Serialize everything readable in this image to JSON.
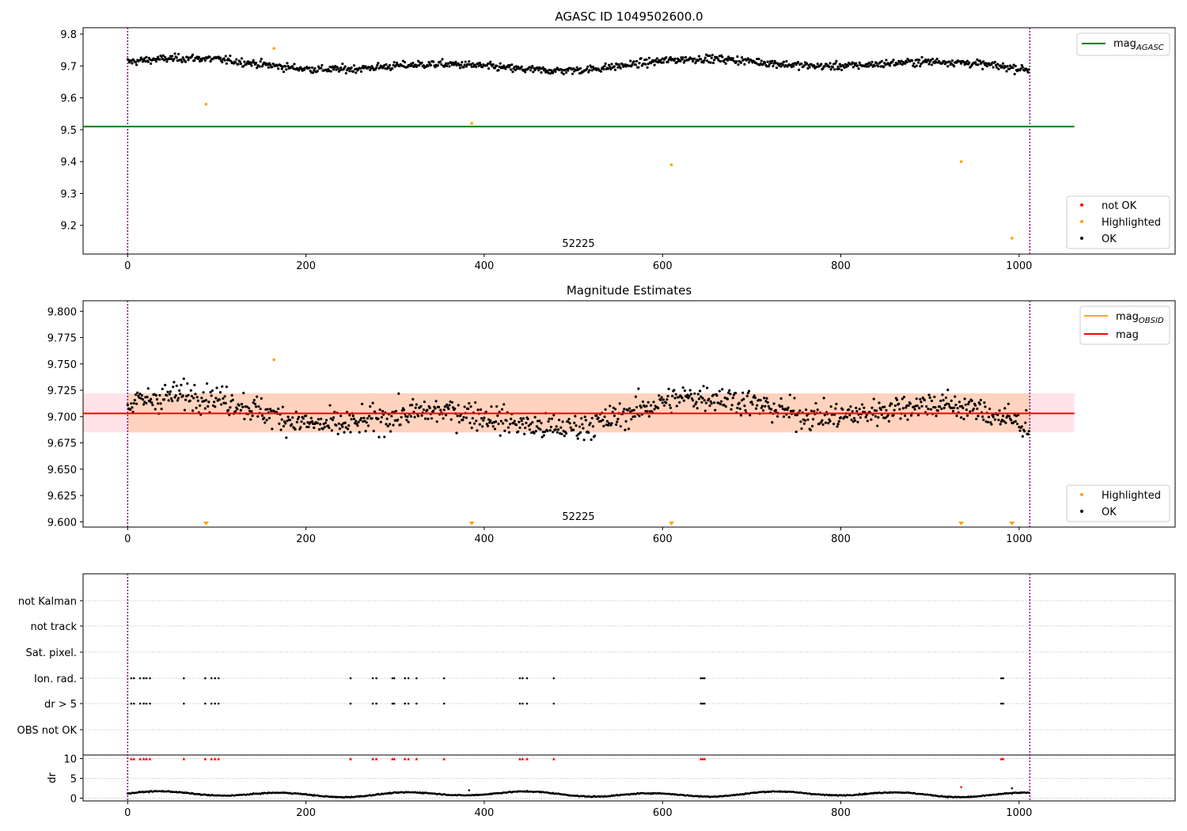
{
  "colors": {
    "ok": "#000000",
    "not_ok": "#ff0000",
    "highlighted": "#ffa500",
    "agasc_line": "#008000",
    "mag_line": "#ff0000",
    "obsid_line": "#ffa500",
    "band_mag": "#ffc0cb",
    "band_obsid": "#ffc8a0",
    "obs_boundary": "#800080"
  },
  "chart_data": [
    {
      "type": "scatter",
      "title": "AGASC ID 1049502600.0",
      "xlim": [
        -50,
        1175
      ],
      "ylim": [
        9.11,
        9.82
      ],
      "xticks": [
        0,
        200,
        400,
        600,
        800,
        1000
      ],
      "yticks": [
        9.2,
        9.3,
        9.4,
        9.5,
        9.6,
        9.7,
        9.8
      ],
      "obs_label": "52225",
      "obs_boundaries": [
        0,
        1012
      ],
      "mag_agasc": 9.51,
      "line_extent": [
        -50,
        1062
      ],
      "ok_series": {
        "name": "OK",
        "n": 1012,
        "mean": 9.703,
        "amplitude": 0.022,
        "noise": 0.012
      },
      "highlighted_points": [
        [
          88,
          9.58
        ],
        [
          164,
          9.755
        ],
        [
          386,
          9.52
        ],
        [
          610,
          9.39
        ],
        [
          935,
          9.4
        ],
        [
          992,
          9.16
        ]
      ],
      "legend_lines": [
        {
          "base": "mag",
          "sub": "AGASC"
        }
      ],
      "legend_points": [
        "not OK",
        "Highlighted",
        "OK"
      ]
    },
    {
      "type": "scatter",
      "title": "Magnitude Estimates",
      "xlim": [
        -50,
        1175
      ],
      "ylim": [
        9.595,
        9.81
      ],
      "xticks": [
        0,
        200,
        400,
        600,
        800,
        1000
      ],
      "yticks": [
        9.6,
        9.625,
        9.65,
        9.675,
        9.7,
        9.725,
        9.75,
        9.775,
        9.8
      ],
      "obs_label": "52225",
      "obs_boundaries": [
        0,
        1012
      ],
      "mag": 9.703,
      "mag_band": [
        9.685,
        9.722
      ],
      "mag_obsid": 9.703,
      "obsid_band": [
        9.685,
        9.722
      ],
      "line_extent": [
        -50,
        1062
      ],
      "ok_series": {
        "name": "OK",
        "n": 1012,
        "mean": 9.703,
        "amplitude": 0.018,
        "noise": 0.013
      },
      "highlighted_markers_low": [
        88,
        386,
        610,
        935,
        992
      ],
      "highlighted_point": [
        164,
        9.754
      ],
      "legend_lines": [
        {
          "base": "mag",
          "sub": "OBSID"
        },
        {
          "base": "mag",
          "sub": ""
        }
      ],
      "legend_points": [
        "Highlighted",
        "OK"
      ]
    },
    {
      "type": "scatter",
      "title": "",
      "xlim": [
        -50,
        1175
      ],
      "xticks": [
        0,
        200,
        400,
        600,
        800,
        1000
      ],
      "flag_labels": [
        "not Kalman",
        "not track",
        "Sat. pixel.",
        "Ion. rad.",
        "dr > 5",
        "OBS not OK"
      ],
      "flag_points": [
        4,
        7,
        14,
        18,
        21,
        25,
        63,
        87,
        94,
        98,
        102,
        250,
        275,
        279,
        297,
        299,
        311,
        315,
        324,
        355,
        440,
        443,
        448,
        478,
        643,
        645,
        647,
        980,
        982
      ],
      "dr_ylabel": "dr",
      "dr_yticks": [
        0,
        5,
        10
      ],
      "dr_ylim": [
        -0.5,
        10.5
      ],
      "dr_series": {
        "n": 1012,
        "mean": 1.0,
        "amplitude": 0.5
      },
      "dr_outliers": [
        [
          935,
          2.8
        ],
        [
          992,
          2.5
        ],
        [
          383,
          2.0
        ]
      ]
    }
  ]
}
